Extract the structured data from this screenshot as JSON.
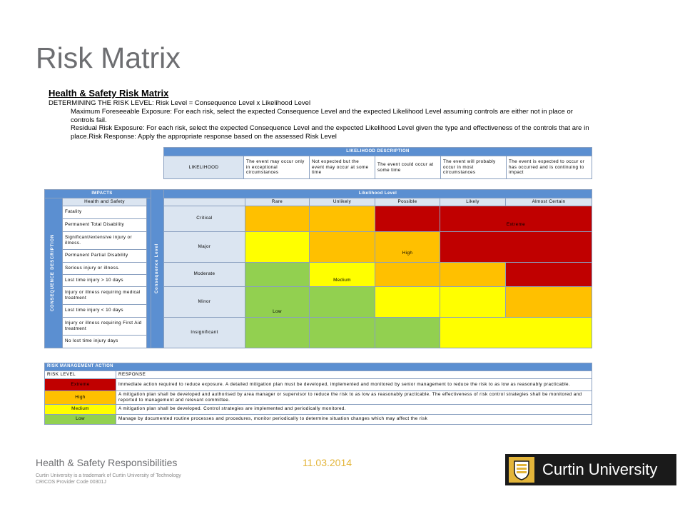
{
  "slide": {
    "title": "Risk Matrix"
  },
  "matrix": {
    "title": "Health & Safety Risk Matrix",
    "determining": "DETERMINING THE RISK LEVEL: Risk Level = Consequence Level x Likelihood Level",
    "max_exposure": "Maximum Foreseeable Exposure:  For each risk, select the expected Consequence Level and the expected Likelihood Level assuming controls are either not in place or controls fail.",
    "residual": "Residual Risk Exposure:  For each risk, select the expected Consequence Level and the expected Likelihood Level given the type and effectiveness of the controls that are in place.Risk Response: Apply the appropriate response based on the assessed Risk Level"
  },
  "likelihood_desc": {
    "header": "LIKELIHOOD DESCRIPTION",
    "label": "LIKELIHOOD",
    "descriptions": [
      "The event may occur only in exceptional circumstances",
      "Not expected but the event may occur at some time",
      "The event could occur at some time",
      "The event will probably occur in most circumstances",
      "The event is expected to occur or has occurred and is continuing to impact"
    ]
  },
  "impacts": {
    "header": "IMPACTS",
    "subheader": "Health and Safety",
    "side_label": "CONSEQUENCE DESCRIPTION",
    "rows": [
      [
        "Fatality",
        "Permanent Total Disability"
      ],
      [
        "Significant/extensive injury or illness.",
        "Permanent Partial Disability"
      ],
      [
        "Serious injury or illness.",
        "Lost time injury > 10 days"
      ],
      [
        "Injury or illness requiring medical treatment",
        "Lost time injury < 10 days"
      ],
      [
        "Injury or illness requiring First Aid treatment",
        "No lost time injury days"
      ]
    ]
  },
  "grid": {
    "header": "Likelihood Level",
    "side_label": "Consequence Level",
    "columns": [
      "Rare",
      "Unlikely",
      "Possible",
      "Likely",
      "Almost Certain"
    ],
    "rows": [
      "Critical",
      "Major",
      "Moderate",
      "Minor",
      "Insignificant"
    ],
    "labels": {
      "extreme": "Extreme",
      "high": "High",
      "medium": "Medium",
      "low": "Low"
    }
  },
  "action": {
    "header": "RISK MANAGEMENT ACTION",
    "col_level": "RISK LEVEL",
    "col_response": "RESPONSE",
    "rows": [
      {
        "level": "Extreme",
        "response": "Immediate action required to reduce exposure. A detailed mitigation plan must be developed, implemented and monitored by senior management to reduce the risk to as low as reasonably practicable."
      },
      {
        "level": "High",
        "response": "A mitigation plan shall be developed and authorised by area manager or supervisor to reduce the risk to as low as reasonably practicable. The effectiveness of risk control strategies shall be monitored and reported to management and relevant committee."
      },
      {
        "level": "Medium",
        "response": "A mitigation plan shall be developed. Control strategies are implemented and periodically monitored."
      },
      {
        "level": "Low",
        "response": "Manage by documented routine processes and procedures, monitor periodically to determine situation changes which may affect the risk"
      }
    ]
  },
  "footer": {
    "title": "Health & Safety Responsibilities",
    "date": "11.03.2014",
    "trademark": "Curtin University is a trademark of Curtin University of Technology",
    "cricos": "CRICOS Provider Code 00301J",
    "logo_text": "Curtin University"
  },
  "colors": {
    "blue_header": "#5b8fd1",
    "extreme": "#c00000",
    "high": "#ffc000",
    "medium": "#ffff00",
    "low": "#92d050",
    "curtin_gold": "#e3b53a"
  }
}
